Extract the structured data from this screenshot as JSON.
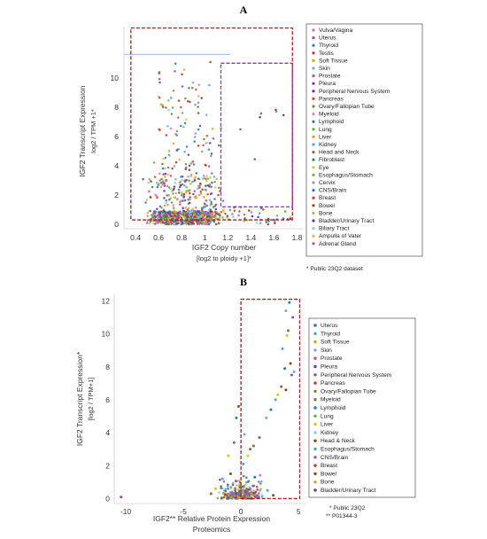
{
  "chart_data": [
    {
      "panel": "A",
      "type": "scatter",
      "xlabel": "IGF2 Copy number",
      "xlabel_sub": "[log2 to ploidy +1]*",
      "ylabel": "IGF2 Transcript Expression",
      "ylabel_sub": "log2 / TPM +1*",
      "xlim": [
        0.3,
        1.85
      ],
      "ylim": [
        -0.3,
        13.5
      ],
      "x_ticks": [
        "0.4",
        "0.6",
        "0.8",
        "1",
        "1.2",
        "1.4",
        "1.6",
        "1.8"
      ],
      "y_ticks": [
        "0",
        "2",
        "4",
        "6",
        "8",
        "10"
      ],
      "legend_entries": [
        "Vulva/Vagina",
        "Uterus",
        "Thyroid",
        "Testis",
        "Soft Tissue",
        "Skin",
        "Prostate",
        "Pleura",
        "Peripheral Nervous System",
        "Pancreas",
        "Ovary/Fallopian Tube",
        "Myeloid",
        "Lymphoid",
        "Lung",
        "Liver",
        "Kidney",
        "Head and Neck",
        "Fibroblast",
        "Eye",
        "Esophagus/Stomach",
        "Cervix",
        "CNS/Brain",
        "Breast",
        "Bowel",
        "Bone",
        "Bladder/Urinary Tract",
        "Biliary Tract",
        "Ampulla of Vater",
        "Adrenal Gland"
      ],
      "legend_colors": [
        "#c06fb4",
        "#8d4f9e",
        "#2a7fc1",
        "#b3332e",
        "#d1a300",
        "#7aa7d8",
        "#c5489a",
        "#6a3d9a",
        "#7b1fa2",
        "#d04a2a",
        "#6f8f2e",
        "#e07bb8",
        "#1f78b4",
        "#5ab22e",
        "#e39a1c",
        "#4f9fd6",
        "#8b6a3e",
        "#2c8f4a",
        "#b8d44a",
        "#6ea95e",
        "#9a9a9a",
        "#3a6fb0",
        "#c0392b",
        "#8b4a1c",
        "#d6a33a",
        "#5a3e8a",
        "#7ad1e8",
        "#e8b04a",
        "#a34fb8"
      ],
      "legend_note": "* Public 23Q2 dataset",
      "outer_box": {
        "x": [
          0.36,
          1.76
        ],
        "y": [
          0.3,
          13.4
        ]
      },
      "inner_box": {
        "x": [
          1.14,
          1.76
        ],
        "y": [
          1.2,
          11.0
        ]
      },
      "reference_line_y": 11.6
    },
    {
      "panel": "B",
      "type": "scatter",
      "xlabel": "IGF2** Relative Protein Expression",
      "xlabel_sub": "Proteomics",
      "ylabel": "IGF2 Transcript Expression*",
      "ylabel_sub": "[log2 / TPM+1]",
      "xlim": [
        -11,
        5.6
      ],
      "ylim": [
        -0.3,
        12.4
      ],
      "x_ticks": [
        "-10",
        "-5",
        "0",
        "5"
      ],
      "y_ticks": [
        "0",
        "2",
        "4",
        "6",
        "8",
        "10",
        "12"
      ],
      "legend_entries": [
        "Uterus",
        "Thyroid",
        "Soft Tissue",
        "Skin",
        "Prostate",
        "Pleura",
        "Peripheral Nervous System",
        "Pancreas",
        "Ovary/Fallopian Tube",
        "Myeloid",
        "Lymphoid",
        "Lung",
        "Liver",
        "Kidney",
        "Head & Neck",
        "Esophagus/Stomach",
        "CNS/Brain",
        "Breast",
        "Bowel",
        "Bone",
        "Bladder/Urinary Tract"
      ],
      "legend_colors": [
        "#1f78b4",
        "#4f9fd6",
        "#d1a300",
        "#7aa7d8",
        "#c5489a",
        "#6a3d9a",
        "#8d4f9e",
        "#c0392b",
        "#6f8f2e",
        "#8b6a3e",
        "#1f78b4",
        "#5ab22e",
        "#d6c31a",
        "#7ad1e8",
        "#8b4a1c",
        "#4f9fd6",
        "#a34fb8",
        "#c0392b",
        "#8b4a1c",
        "#d6a33a",
        "#5a3e8a"
      ],
      "legend_note_1": "* Public 23Q2",
      "legend_note_2": "** P01344-3",
      "outer_box": {
        "x": [
          0,
          5.1
        ],
        "y": [
          0,
          12.1
        ]
      },
      "points": [
        {
          "x": 4.2,
          "y": 11.9
        },
        {
          "x": 3.9,
          "y": 11.4
        },
        {
          "x": 4.5,
          "y": 11.0
        },
        {
          "x": 4.1,
          "y": 10.2
        },
        {
          "x": 4.0,
          "y": 9.9
        },
        {
          "x": 3.6,
          "y": 9.1
        },
        {
          "x": 4.3,
          "y": 8.2
        },
        {
          "x": 3.8,
          "y": 7.9
        },
        {
          "x": 4.6,
          "y": 7.7
        },
        {
          "x": 4.4,
          "y": 7.5
        },
        {
          "x": 3.5,
          "y": 6.8
        },
        {
          "x": 3.2,
          "y": 6.3
        },
        {
          "x": 3.0,
          "y": 6.0
        },
        {
          "x": 3.9,
          "y": 6.6
        },
        {
          "x": 2.6,
          "y": 5.4
        },
        {
          "x": 2.2,
          "y": 4.9
        },
        {
          "x": 1.6,
          "y": 3.7
        },
        {
          "x": 1.1,
          "y": 3.2
        },
        {
          "x": 0.6,
          "y": 2.6
        },
        {
          "x": 0.2,
          "y": 2.1
        },
        {
          "x": -0.2,
          "y": 5.6
        },
        {
          "x": -0.4,
          "y": 4.9
        },
        {
          "x": 0.3,
          "y": 3.9
        },
        {
          "x": -0.6,
          "y": 3.4
        },
        {
          "x": 0.8,
          "y": 3.0
        },
        {
          "x": -1.1,
          "y": 2.6
        },
        {
          "x": -1.6,
          "y": 1.2
        },
        {
          "x": -0.9,
          "y": 1.5
        },
        {
          "x": 1.2,
          "y": 1.3
        },
        {
          "x": 1.7,
          "y": 0.9
        },
        {
          "x": -10.4,
          "y": 0.1
        },
        {
          "x": -2.6,
          "y": 0.3
        },
        {
          "x": -2.2,
          "y": 0.6
        },
        {
          "x": 2.3,
          "y": 0.5
        },
        {
          "x": 2.8,
          "y": 0.2
        }
      ]
    }
  ]
}
